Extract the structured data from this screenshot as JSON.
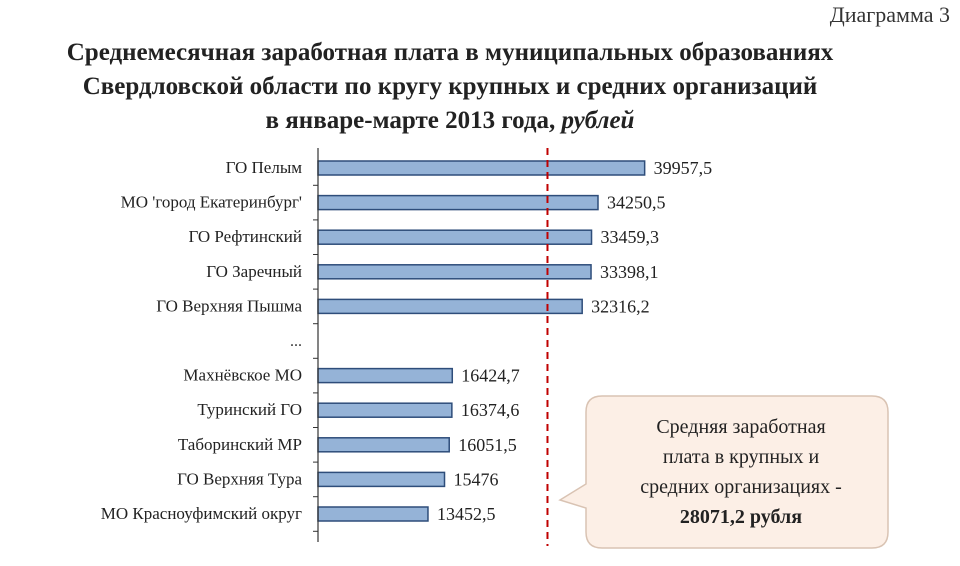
{
  "diagram_label": "Диаграмма 3",
  "title": {
    "line1": "Среднемесячная заработная плата в муниципальных образованиях",
    "line2": "Свердловской области по кругу крупных и средних организаций",
    "line3": "в январе-марте 2013 года,",
    "unit": "рублей"
  },
  "callout": {
    "line1": "Средняя заработная",
    "line2": "плата в крупных и",
    "line3": "средних организациях  -",
    "value_text": "28071,2 рубля"
  },
  "colors": {
    "bar_fill": "#95b3d7",
    "bar_stroke": "#2e4d7a",
    "reference_line": "#c00000",
    "callout_fill": "#fcefe6"
  },
  "chart_data": {
    "type": "bar",
    "orientation": "horizontal",
    "categories": [
      "ГО Пелым",
      "МО 'город Екатеринбург'",
      "ГО Рефтинский",
      "ГО Заречный",
      "ГО Верхняя Пышма",
      "...",
      "Махнёвское МО",
      "Туринский ГО",
      "Таборинский МР",
      "ГО Верхняя Тура",
      "МО Красноуфимский округ"
    ],
    "values": [
      39957.5,
      34250.5,
      33459.3,
      33398.1,
      32316.2,
      null,
      16424.7,
      16374.6,
      16051.5,
      15476,
      13452.5
    ],
    "value_labels": [
      "39957,5",
      "34250,5",
      "33459,3",
      "33398,1",
      "32316,2",
      "",
      "16424,7",
      "16374,6",
      "16051,5",
      "15476",
      "13452,5"
    ],
    "reference_line": {
      "value": 28071.2,
      "style": "dashed"
    },
    "xlim": [
      0,
      40000
    ],
    "grid": false,
    "legend": "none"
  }
}
